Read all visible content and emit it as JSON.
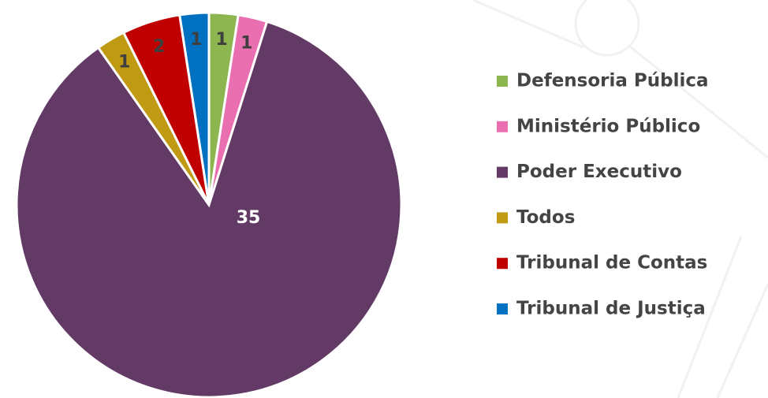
{
  "chart_data": {
    "type": "pie",
    "categories": [
      "Defensoria Pública",
      "Ministério Público",
      "Poder Executivo",
      "Todos",
      "Tribunal de Contas",
      "Tribunal de Justiça"
    ],
    "values": [
      1,
      1,
      35,
      1,
      2,
      1
    ],
    "colors": [
      "#8db650",
      "#ea6fb1",
      "#633a66",
      "#c09a12",
      "#c00000",
      "#0070c0"
    ],
    "legend": "right"
  }
}
